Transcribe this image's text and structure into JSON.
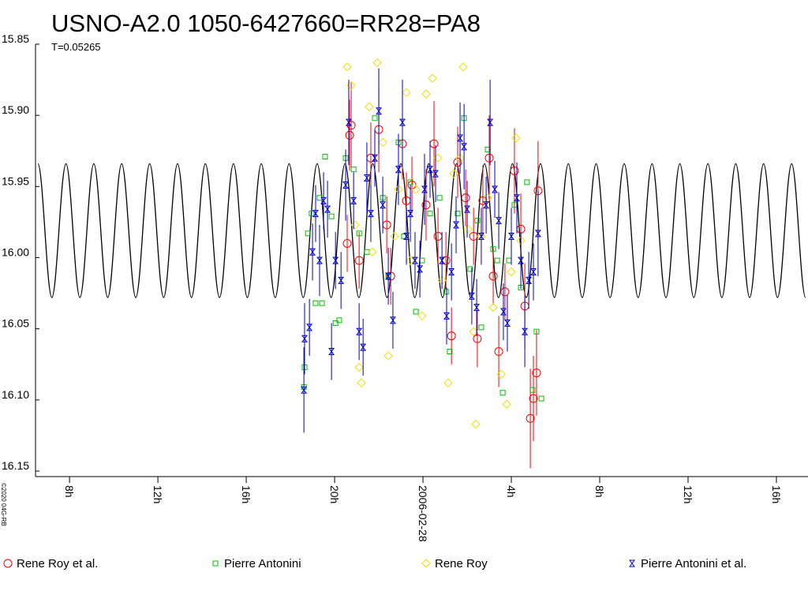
{
  "chart_data": {
    "type": "scatter",
    "title": "USNO-A2.0 1050-6427660=RR28=PA8",
    "subtitle": "T=0.05265",
    "credit": "©2020 04G-RB",
    "xlim": [
      6.46,
      41.43
    ],
    "xticks": [
      {
        "value": 8,
        "label": "8h"
      },
      {
        "value": 12,
        "label": "12h"
      },
      {
        "value": 16,
        "label": "16h"
      },
      {
        "value": 20,
        "label": "20h"
      },
      {
        "value": 24,
        "label": "2006-02-28"
      },
      {
        "value": 28,
        "label": "4h"
      },
      {
        "value": 32,
        "label": "8h"
      },
      {
        "value": 36,
        "label": "12h"
      },
      {
        "value": 40,
        "label": "16h"
      }
    ],
    "ylim": [
      15.85,
      16.15
    ],
    "y_inverted": true,
    "yticks": [
      15.85,
      {
        "value": 15.9,
        "label": "15.90"
      },
      15.95,
      {
        "value": 16.0,
        "label": "16.00"
      },
      16.05,
      {
        "value": 16.1,
        "label": "16.10"
      },
      16.15
    ],
    "model": {
      "color": "#000000",
      "x": [
        6.57,
        7.2,
        7.84,
        8.47,
        9.1,
        9.73,
        10.36,
        11.0,
        11.63,
        12.26,
        12.89,
        13.52,
        14.15,
        14.79,
        15.42,
        16.05,
        16.68,
        17.31,
        17.94,
        18.58,
        19.21,
        19.84,
        20.47,
        21.1,
        21.73,
        22.37,
        23.0,
        23.63,
        24.26,
        24.89,
        25.52,
        26.16,
        26.79,
        27.42,
        28.05,
        28.68,
        29.32,
        29.95,
        30.58,
        31.21,
        31.84,
        32.47,
        33.11,
        33.74,
        34.37,
        35.0,
        35.63,
        36.26,
        36.9,
        37.53,
        38.16,
        38.79,
        39.42,
        40.05,
        40.69,
        41.32
      ],
      "values": [
        15.934,
        16.028,
        15.934,
        16.028,
        15.934,
        16.028,
        15.934,
        16.028,
        15.934,
        16.028,
        15.934,
        16.028,
        15.934,
        16.028,
        15.934,
        16.028,
        15.934,
        16.028,
        15.934,
        16.028,
        15.934,
        16.028,
        15.934,
        16.028,
        15.934,
        16.028,
        15.934,
        16.028,
        15.934,
        16.028,
        15.934,
        16.028,
        15.934,
        16.028,
        15.934,
        16.028,
        15.934,
        16.028,
        15.934,
        16.028,
        15.934,
        16.028,
        15.934,
        16.028,
        15.934,
        16.028,
        15.934,
        16.028,
        15.934,
        16.028,
        15.934,
        16.028,
        15.934,
        16.028,
        15.934,
        16.028
      ]
    },
    "series": [
      {
        "name": "Rene Roy et al.",
        "color": "#ff0000",
        "marker": "circle",
        "x": [
          20.75,
          20.68,
          20.57,
          21.11,
          21.64,
          22.0,
          22.36,
          22.54,
          23.07,
          23.25,
          23.5,
          24.14,
          24.5,
          24.68,
          25.04,
          25.29,
          25.57,
          25.93,
          26.29,
          26.46,
          26.71,
          27.0,
          27.18,
          27.43,
          27.71,
          28.14,
          28.43,
          28.61,
          28.86,
          29.0,
          29.14,
          29.21
        ],
        "values": [
          15.907,
          15.914,
          15.99,
          16.002,
          15.93,
          15.91,
          15.977,
          16.013,
          15.92,
          15.96,
          15.949,
          15.963,
          15.92,
          15.985,
          16.002,
          16.055,
          15.933,
          15.958,
          15.985,
          16.057,
          15.96,
          15.93,
          16.013,
          16.066,
          16.024,
          15.939,
          15.98,
          16.034,
          16.113,
          16.099,
          16.081,
          15.953
        ],
        "errors": [
          0.03,
          0.025,
          0.02,
          0.02,
          0.025,
          0.03,
          0.02,
          0.02,
          0.025,
          0.02,
          0.02,
          0.025,
          0.03,
          0.02,
          0.02,
          0.02,
          0.025,
          0.02,
          0.02,
          0.02,
          0.025,
          0.03,
          0.02,
          0.025,
          0.02,
          0.03,
          0.025,
          0.03,
          0.035,
          0.03,
          0.03,
          0.035
        ]
      },
      {
        "name": "Pierre Antonini",
        "color": "#00c000",
        "marker": "square",
        "x": [
          18.61,
          18.64,
          18.79,
          18.96,
          19.14,
          19.32,
          19.43,
          19.57,
          19.86,
          20.04,
          20.21,
          20.5,
          20.86,
          21.11,
          21.46,
          21.82,
          22.18,
          22.43,
          22.89,
          23.14,
          23.43,
          23.68,
          23.96,
          24.32,
          24.75,
          25.04,
          25.21,
          25.57,
          25.86,
          26.14,
          26.46,
          26.64,
          26.93,
          27.18,
          27.36,
          27.61,
          27.89,
          28.14,
          28.43,
          28.71,
          28.96,
          29.14,
          29.36
        ],
        "values": [
          16.091,
          16.077,
          15.983,
          15.969,
          16.032,
          15.958,
          16.032,
          15.929,
          15.971,
          16.046,
          16.044,
          15.93,
          15.938,
          15.983,
          15.996,
          15.902,
          15.958,
          16.013,
          15.919,
          15.985,
          15.947,
          16.038,
          16.002,
          15.969,
          15.958,
          16.024,
          16.066,
          15.969,
          15.902,
          16.008,
          15.974,
          16.049,
          15.924,
          15.994,
          16.002,
          16.095,
          16.002,
          15.963,
          16.021,
          15.947,
          16.093,
          16.052,
          16.099
        ]
      },
      {
        "name": "Rene Roy",
        "color": "#f0e000",
        "marker": "diamond",
        "x": [
          20.57,
          20.75,
          20.93,
          21.11,
          21.21,
          21.57,
          21.71,
          21.93,
          22.18,
          22.43,
          22.71,
          22.89,
          23.25,
          23.43,
          23.68,
          23.96,
          24.14,
          24.43,
          24.68,
          24.86,
          25.14,
          25.39,
          25.68,
          25.82,
          26.04,
          26.29,
          26.39,
          26.64,
          26.93,
          27.18,
          27.54,
          27.79,
          28.0,
          28.21,
          28.43
        ],
        "values": [
          15.866,
          15.879,
          15.977,
          16.077,
          16.088,
          15.894,
          15.996,
          15.863,
          15.919,
          16.069,
          15.985,
          15.952,
          15.884,
          16.002,
          15.952,
          16.041,
          15.885,
          15.874,
          15.93,
          16.016,
          16.088,
          15.941,
          15.93,
          15.866,
          15.98,
          16.052,
          16.117,
          15.985,
          15.958,
          16.035,
          16.082,
          16.103,
          16.01,
          15.916,
          15.988
        ]
      },
      {
        "name": "Pierre Antonini et al.",
        "color": "#0000cc",
        "marker": "star",
        "x": [
          18.61,
          18.64,
          18.86,
          19.0,
          19.14,
          19.32,
          19.5,
          19.68,
          19.86,
          20.04,
          20.29,
          20.5,
          20.64,
          20.86,
          21.11,
          21.29,
          21.46,
          21.64,
          21.82,
          22.0,
          22.18,
          22.43,
          22.64,
          22.89,
          23.07,
          23.25,
          23.43,
          23.64,
          23.86,
          24.07,
          24.32,
          24.57,
          24.86,
          25.07,
          25.29,
          25.5,
          25.68,
          25.86,
          26.0,
          26.21,
          26.43,
          26.64,
          26.86,
          27.04,
          27.25,
          27.43,
          27.64,
          27.82,
          28.0,
          28.25,
          28.43,
          28.61,
          28.79,
          29.0,
          29.21
        ],
        "values": [
          16.093,
          16.057,
          16.049,
          15.996,
          15.969,
          16.002,
          15.96,
          15.966,
          16.066,
          16.002,
          16.016,
          15.949,
          15.905,
          15.96,
          16.052,
          16.063,
          15.944,
          15.969,
          15.93,
          15.897,
          15.963,
          16.013,
          16.044,
          15.938,
          15.905,
          15.985,
          15.969,
          16.002,
          16.008,
          15.952,
          15.938,
          15.941,
          16.002,
          16.041,
          16.01,
          15.977,
          15.916,
          15.922,
          15.966,
          16.027,
          16.035,
          15.985,
          15.963,
          15.905,
          15.952,
          15.974,
          16.038,
          16.046,
          15.985,
          15.958,
          16.002,
          16.052,
          16.016,
          16.01,
          15.983
        ],
        "errors": [
          0.03,
          0.025,
          0.02,
          0.02,
          0.02,
          0.025,
          0.02,
          0.02,
          0.02,
          0.02,
          0.02,
          0.025,
          0.03,
          0.02,
          0.02,
          0.02,
          0.025,
          0.02,
          0.02,
          0.03,
          0.02,
          0.02,
          0.02,
          0.025,
          0.03,
          0.02,
          0.02,
          0.02,
          0.02,
          0.025,
          0.02,
          0.02,
          0.02,
          0.02,
          0.02,
          0.02,
          0.025,
          0.03,
          0.02,
          0.02,
          0.02,
          0.02,
          0.02,
          0.03,
          0.02,
          0.02,
          0.02,
          0.02,
          0.02,
          0.025,
          0.02,
          0.025,
          0.02,
          0.02,
          0.03
        ]
      }
    ]
  }
}
